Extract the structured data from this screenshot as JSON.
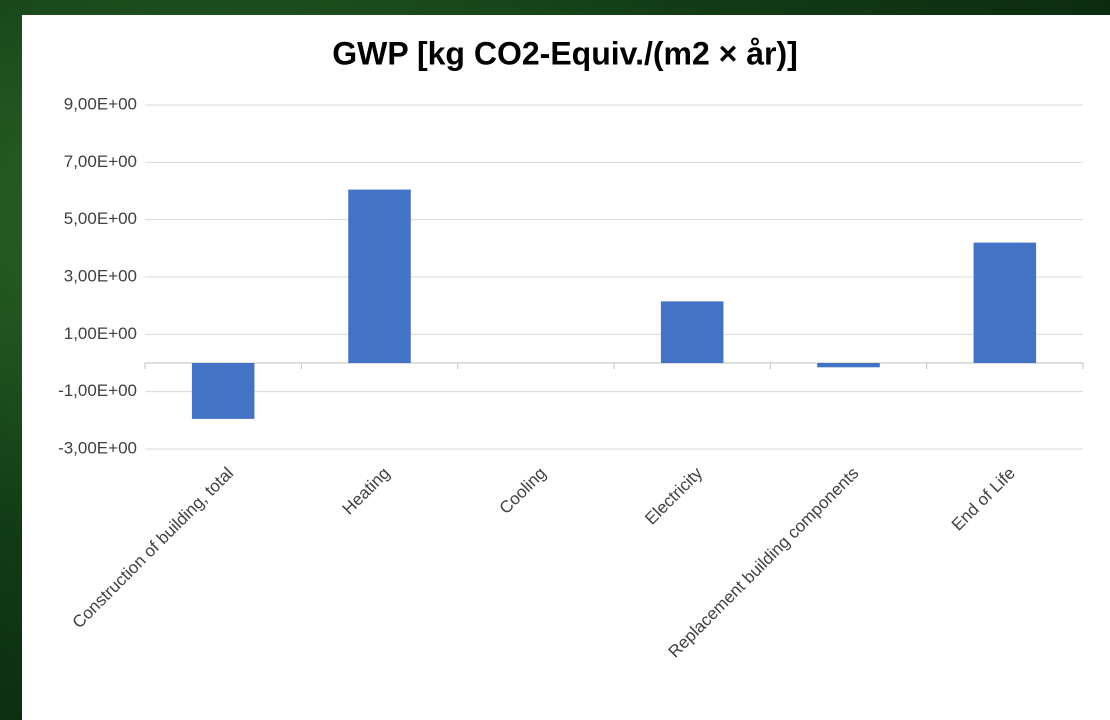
{
  "chart_data": {
    "type": "bar",
    "title": "GWP [kg CO2-Equiv./(m2 × år)]",
    "categories": [
      "Construction of building, total",
      "Heating",
      "Cooling",
      "Electricity",
      "Replacement building components",
      "End of Life"
    ],
    "values": [
      -1.95,
      6.05,
      0,
      2.15,
      -0.15,
      4.2
    ],
    "color": "#4472c4",
    "ylim": [
      -3,
      9
    ],
    "yticks": [
      {
        "value": -3,
        "label": "-3,00E+00"
      },
      {
        "value": -1,
        "label": "-1,00E+00"
      },
      {
        "value": 1,
        "label": "1,00E+00"
      },
      {
        "value": 3,
        "label": "3,00E+00"
      },
      {
        "value": 5,
        "label": "5,00E+00"
      },
      {
        "value": 7,
        "label": "7,00E+00"
      },
      {
        "value": 9,
        "label": "9,00E+00"
      }
    ],
    "grid": true
  }
}
